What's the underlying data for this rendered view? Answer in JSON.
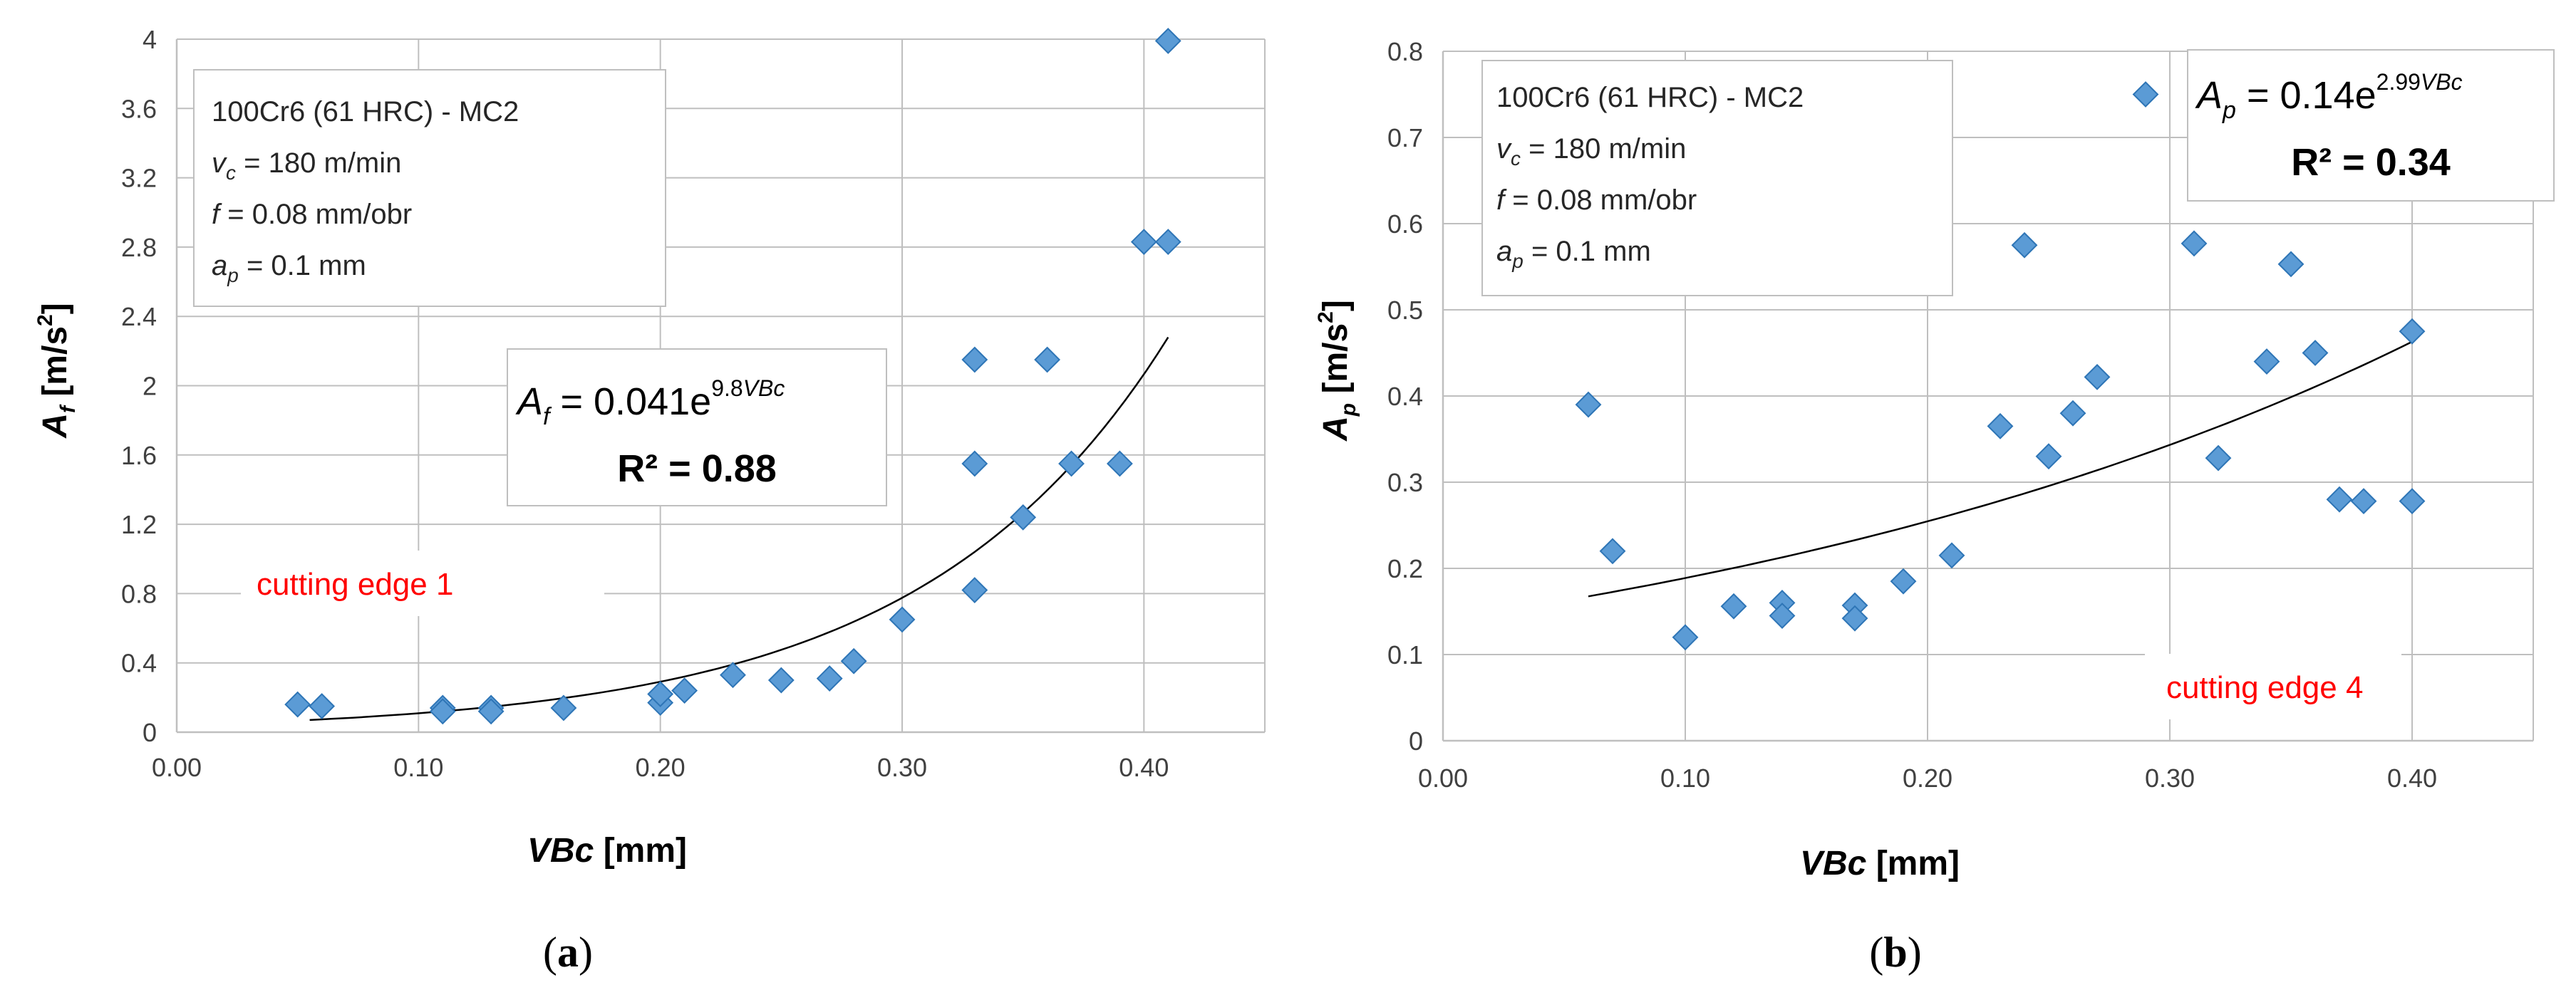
{
  "chart_data": [
    {
      "type": "scatter",
      "panel_label": "a",
      "xlabel": "VBc",
      "xlabel_unit": "[mm]",
      "ylabel_symbol": "A",
      "ylabel_sub": "f",
      "ylabel_unit": "[m/s",
      "ylabel_exp": "2",
      "ylabel_close": "]",
      "xlim": [
        0,
        0.45
      ],
      "ylim": [
        0,
        4
      ],
      "x_ticks": [
        0,
        0.1,
        0.2,
        0.3,
        0.4
      ],
      "x_tick_labels": [
        "0.00",
        "0.10",
        "0.20",
        "0.30",
        "0.40"
      ],
      "y_ticks": [
        0,
        0.4,
        0.8,
        1.2,
        1.6,
        2,
        2.4,
        2.8,
        3.2,
        3.6,
        4
      ],
      "y_tick_labels": [
        "0",
        "0.4",
        "0.8",
        "1.2",
        "1.6",
        "2",
        "2.4",
        "2.8",
        "3.2",
        "3.6",
        "4"
      ],
      "grid": true,
      "info": {
        "line1": "100Cr6  (61 HRC) - MC2",
        "vc_sym": "v",
        "vc_sub": "c",
        "vc_val": " = 180 m/min",
        "f_sym": "f",
        "f_val": " = 0.08 mm/obr",
        "ap_sym": "a",
        "ap_sub": "p",
        "ap_val": " = 0.1 mm"
      },
      "equation": {
        "sym": "A",
        "sub": "f",
        "rest": " = 0.041e",
        "exp": "9.8",
        "exp_var": "VBc",
        "r2": "R² = 0.88"
      },
      "annotation": "cutting edge 1",
      "trendline": {
        "type": "exponential",
        "a": 0.041,
        "b": 9.8,
        "x_range": [
          0.055,
          0.41
        ]
      },
      "series": [
        {
          "name": "data",
          "x": [
            0.05,
            0.06,
            0.11,
            0.11,
            0.13,
            0.13,
            0.16,
            0.2,
            0.2,
            0.21,
            0.23,
            0.25,
            0.27,
            0.28,
            0.3,
            0.33,
            0.33,
            0.33,
            0.35,
            0.36,
            0.37,
            0.39,
            0.4,
            0.41,
            0.41
          ],
          "y": [
            0.16,
            0.15,
            0.14,
            0.12,
            0.14,
            0.12,
            0.14,
            0.17,
            0.22,
            0.24,
            0.33,
            0.3,
            0.31,
            0.41,
            0.65,
            0.82,
            1.55,
            2.15,
            1.24,
            2.15,
            1.55,
            1.55,
            2.83,
            2.83,
            3.99
          ]
        }
      ]
    },
    {
      "type": "scatter",
      "panel_label": "b",
      "xlabel": "VBc",
      "xlabel_unit": "[mm]",
      "ylabel_symbol": "A",
      "ylabel_sub": "p",
      "ylabel_unit": "[m/s",
      "ylabel_exp": "2",
      "ylabel_close": "]",
      "xlim": [
        0,
        0.45
      ],
      "ylim": [
        0,
        0.8
      ],
      "x_ticks": [
        0,
        0.1,
        0.2,
        0.3,
        0.4
      ],
      "x_tick_labels": [
        "0.00",
        "0.10",
        "0.20",
        "0.30",
        "0.40"
      ],
      "y_ticks": [
        0,
        0.1,
        0.2,
        0.3,
        0.4,
        0.5,
        0.6,
        0.7,
        0.8
      ],
      "y_tick_labels": [
        "0",
        "0.1",
        "0.2",
        "0.3",
        "0.4",
        "0.5",
        "0.6",
        "0.7",
        "0.8"
      ],
      "grid": true,
      "info": {
        "line1": "100Cr6  (61 HRC) - MC2",
        "vc_sym": "v",
        "vc_sub": "c",
        "vc_val": " = 180 m/min",
        "f_sym": "f",
        "f_val": " = 0.08 mm/obr",
        "ap_sym": "a",
        "ap_sub": "p",
        "ap_val": " = 0.1 mm"
      },
      "equation": {
        "sym": "A",
        "sub": "p",
        "rest": " = 0.14e",
        "exp": "2.99",
        "exp_var": "VBc",
        "r2": "R² = 0.34"
      },
      "annotation": "cutting edge 4",
      "trendline": {
        "type": "exponential",
        "a": 0.14,
        "b": 2.99,
        "x_range": [
          0.06,
          0.4
        ]
      },
      "series": [
        {
          "name": "data",
          "x": [
            0.06,
            0.07,
            0.1,
            0.12,
            0.14,
            0.14,
            0.17,
            0.17,
            0.19,
            0.21,
            0.23,
            0.24,
            0.25,
            0.26,
            0.27,
            0.29,
            0.31,
            0.32,
            0.34,
            0.35,
            0.36,
            0.37,
            0.38,
            0.4,
            0.4
          ],
          "y": [
            0.39,
            0.22,
            0.12,
            0.156,
            0.16,
            0.145,
            0.157,
            0.142,
            0.185,
            0.215,
            0.365,
            0.575,
            0.33,
            0.38,
            0.422,
            0.75,
            0.577,
            0.328,
            0.44,
            0.553,
            0.45,
            0.28,
            0.278,
            0.475,
            0.278
          ]
        }
      ]
    }
  ]
}
